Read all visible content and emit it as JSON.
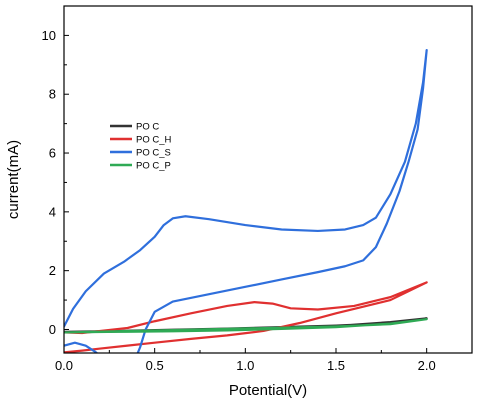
{
  "chart_data": {
    "type": "line",
    "xlabel": "Potential(V)",
    "ylabel": "current(mA)",
    "xlim": [
      0,
      2.25
    ],
    "ylim": [
      -0.8,
      11
    ],
    "x_ticks": [
      0.0,
      0.5,
      1.0,
      1.5,
      2.0
    ],
    "x_tick_labels": [
      "0.0",
      "0.5",
      "1.0",
      "1.5",
      "2.0"
    ],
    "y_ticks": [
      0,
      2,
      4,
      6,
      8,
      10
    ],
    "y_tick_labels": [
      "0",
      "2",
      "4",
      "6",
      "8",
      "10"
    ],
    "legend_position": "left-center",
    "series": [
      {
        "name": "PO C",
        "color": "#333333",
        "points": [
          [
            0.0,
            -0.08
          ],
          [
            0.3,
            -0.05
          ],
          [
            0.6,
            -0.01
          ],
          [
            0.9,
            0.03
          ],
          [
            1.2,
            0.08
          ],
          [
            1.5,
            0.13
          ],
          [
            1.8,
            0.22
          ],
          [
            2.0,
            0.38
          ],
          [
            1.8,
            0.25
          ],
          [
            1.5,
            0.12
          ],
          [
            1.2,
            0.04
          ],
          [
            0.9,
            -0.02
          ],
          [
            0.6,
            -0.04
          ],
          [
            0.3,
            -0.07
          ],
          [
            0.0,
            -0.1
          ]
        ]
      },
      {
        "name": "PO C_H",
        "color": "#e03030",
        "points": [
          [
            0.0,
            -0.1
          ],
          [
            0.1,
            -0.12
          ],
          [
            0.2,
            -0.05
          ],
          [
            0.35,
            0.05
          ],
          [
            0.5,
            0.28
          ],
          [
            0.7,
            0.55
          ],
          [
            0.9,
            0.8
          ],
          [
            1.05,
            0.93
          ],
          [
            1.15,
            0.88
          ],
          [
            1.25,
            0.72
          ],
          [
            1.4,
            0.68
          ],
          [
            1.6,
            0.8
          ],
          [
            1.8,
            1.1
          ],
          [
            2.0,
            1.6
          ],
          [
            1.8,
            1.0
          ],
          [
            1.5,
            0.55
          ],
          [
            1.3,
            0.22
          ],
          [
            1.1,
            -0.05
          ],
          [
            0.9,
            -0.2
          ],
          [
            0.7,
            -0.32
          ],
          [
            0.5,
            -0.45
          ],
          [
            0.35,
            -0.55
          ],
          [
            0.2,
            -0.65
          ],
          [
            0.1,
            -0.72
          ],
          [
            0.0,
            -0.78
          ]
        ]
      },
      {
        "name": "PO C_S",
        "color": "#2f6fdc",
        "points": [
          [
            0.0,
            0.1
          ],
          [
            0.05,
            0.7
          ],
          [
            0.12,
            1.3
          ],
          [
            0.22,
            1.9
          ],
          [
            0.33,
            2.3
          ],
          [
            0.42,
            2.7
          ],
          [
            0.5,
            3.15
          ],
          [
            0.55,
            3.55
          ],
          [
            0.6,
            3.78
          ],
          [
            0.67,
            3.85
          ],
          [
            0.8,
            3.75
          ],
          [
            1.0,
            3.55
          ],
          [
            1.2,
            3.4
          ],
          [
            1.4,
            3.35
          ],
          [
            1.55,
            3.4
          ],
          [
            1.65,
            3.55
          ],
          [
            1.72,
            3.8
          ],
          [
            1.8,
            4.6
          ],
          [
            1.88,
            5.7
          ],
          [
            1.94,
            7.0
          ],
          [
            1.98,
            8.4
          ],
          [
            2.0,
            9.5
          ],
          [
            1.98,
            8.2
          ],
          [
            1.95,
            6.8
          ],
          [
            1.9,
            5.7
          ],
          [
            1.85,
            4.7
          ],
          [
            1.78,
            3.6
          ],
          [
            1.72,
            2.8
          ],
          [
            1.65,
            2.35
          ],
          [
            1.55,
            2.15
          ],
          [
            1.4,
            1.95
          ],
          [
            1.2,
            1.7
          ],
          [
            1.0,
            1.45
          ],
          [
            0.8,
            1.2
          ],
          [
            0.6,
            0.95
          ],
          [
            0.5,
            0.6
          ],
          [
            0.45,
            0.0
          ],
          [
            0.42,
            -0.6
          ],
          [
            0.4,
            -0.9
          ]
        ]
      },
      {
        "name": "PO C_P",
        "color": "#2faa55",
        "points": [
          [
            0.0,
            -0.1
          ],
          [
            0.3,
            -0.06
          ],
          [
            0.6,
            -0.02
          ],
          [
            0.9,
            0.02
          ],
          [
            1.2,
            0.06
          ],
          [
            1.5,
            0.1
          ],
          [
            1.8,
            0.18
          ],
          [
            2.0,
            0.35
          ],
          [
            1.8,
            0.2
          ],
          [
            1.5,
            0.08
          ],
          [
            1.2,
            0.02
          ],
          [
            0.9,
            -0.03
          ],
          [
            0.6,
            -0.06
          ],
          [
            0.3,
            -0.08
          ],
          [
            0.0,
            -0.1
          ]
        ]
      }
    ],
    "extra_segments": [
      {
        "series": "PO C_S",
        "color": "#2f6fdc",
        "points": [
          [
            0.0,
            -0.55
          ],
          [
            0.06,
            -0.45
          ],
          [
            0.12,
            -0.55
          ],
          [
            0.17,
            -0.75
          ],
          [
            0.2,
            -0.9
          ]
        ]
      }
    ]
  }
}
